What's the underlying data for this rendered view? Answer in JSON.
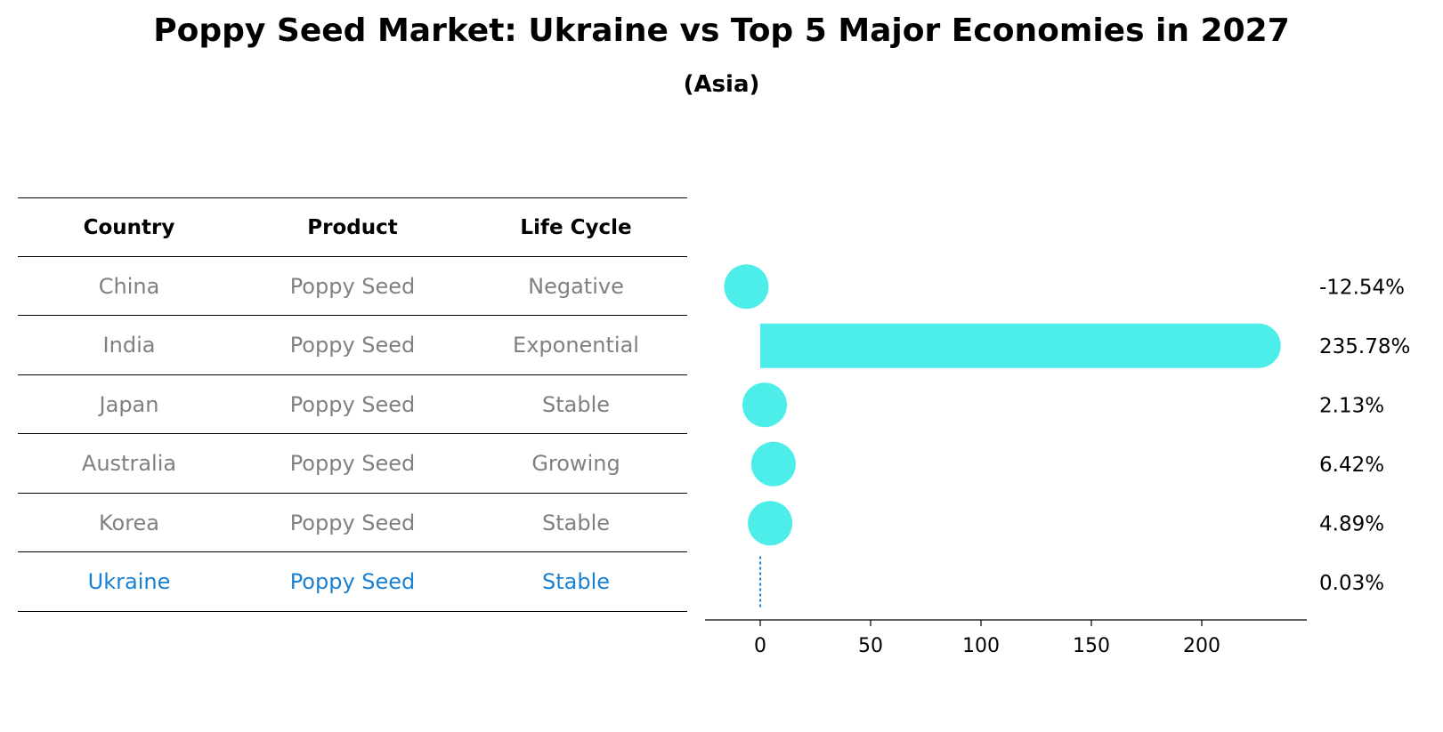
{
  "title": "Poppy Seed Market: Ukraine vs Top 5 Major Economies in 2027",
  "subtitle": "(Asia)",
  "table": {
    "headers": [
      "Country",
      "Product",
      "Life Cycle"
    ],
    "rows": [
      {
        "country": "China",
        "product": "Poppy Seed",
        "life_cycle": "Negative"
      },
      {
        "country": "India",
        "product": "Poppy Seed",
        "life_cycle": "Exponential"
      },
      {
        "country": "Japan",
        "product": "Poppy Seed",
        "life_cycle": "Stable"
      },
      {
        "country": "Australia",
        "product": "Poppy Seed",
        "life_cycle": "Growing"
      },
      {
        "country": "Korea",
        "product": "Poppy Seed",
        "life_cycle": "Stable"
      },
      {
        "country": "Ukraine",
        "product": "Poppy Seed",
        "life_cycle": "Stable"
      }
    ]
  },
  "colors": {
    "bar": "#4deeea",
    "highlight": "#1a80d2",
    "muted": "#808080"
  },
  "chart_data": {
    "type": "bar",
    "orientation": "horizontal",
    "categories": [
      "China",
      "India",
      "Japan",
      "Australia",
      "Korea",
      "Ukraine"
    ],
    "values": [
      -12.54,
      235.78,
      2.13,
      6.42,
      4.89,
      0.03
    ],
    "labels": [
      "-12.54%",
      "235.78%",
      "2.13%",
      "6.42%",
      "4.89%",
      "0.03%"
    ],
    "highlight": "Ukraine",
    "xticks": [
      0,
      50,
      100,
      150,
      200
    ],
    "xlim": [
      -25,
      248
    ],
    "xlabel": "",
    "ylabel": ""
  }
}
